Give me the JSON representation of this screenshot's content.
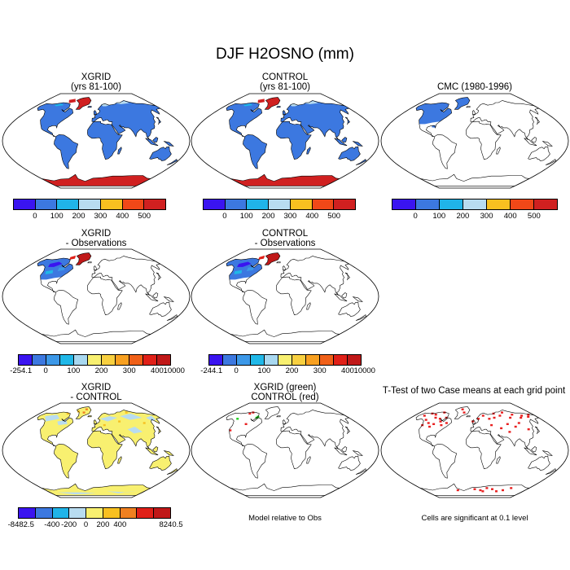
{
  "title": "DJF H2OSNO (mm)",
  "panels": [
    {
      "id": "xgrid",
      "title": [
        "XGRID",
        "(yrs 81-100)"
      ]
    },
    {
      "id": "control",
      "title": [
        "CONTROL",
        "(yrs 81-100)"
      ]
    },
    {
      "id": "cmc",
      "title": [
        "CMC (1980-1996)"
      ]
    },
    {
      "id": "xgrid-obs",
      "title": [
        "XGRID",
        "- Observations"
      ]
    },
    {
      "id": "control-obs",
      "title": [
        "CONTROL",
        "- Observations"
      ]
    },
    {
      "id": "xgrid-control",
      "title": [
        "XGRID",
        "- CONTROL"
      ]
    },
    {
      "id": "green-red",
      "title": [
        "XGRID (green)",
        "CONTROL (red)"
      ],
      "note": "Model relative to Obs"
    },
    {
      "id": "ttest",
      "title": [
        "T-Test of two Case means at each grid point"
      ],
      "note": "Cells are significant at 0.1 level"
    }
  ],
  "colorbars": {
    "abs": {
      "colors": [
        "#3a14f0",
        "#3c78e0",
        "#20b4e8",
        "#b8dcf0",
        "#f8c020",
        "#f04818",
        "#d02020"
      ],
      "ticks": [
        "0",
        "100",
        "200",
        "300",
        "400",
        "500"
      ]
    },
    "obs": {
      "colors": [
        "#3a14f0",
        "#3c78e0",
        "#3c98e8",
        "#20b8e8",
        "#a8d8f0",
        "#f8f070",
        "#f8d040",
        "#f8a020",
        "#f06018",
        "#e02018",
        "#c01818"
      ],
      "ticks_xgrid": [
        "-254.1",
        "0",
        "100",
        "200",
        "300",
        "400",
        "10000"
      ],
      "ticks_control": [
        "-244.1",
        "0",
        "100",
        "200",
        "300",
        "400",
        "10000"
      ]
    },
    "diff": {
      "colors": [
        "#3a14f0",
        "#3c78e0",
        "#20b4e8",
        "#b8dcf0",
        "#f8f070",
        "#f8c020",
        "#f08020",
        "#e02018",
        "#c01818"
      ],
      "ticks": [
        "-8482.5",
        "-400",
        "-200",
        "0",
        "200",
        "400",
        "8240.5"
      ]
    }
  }
}
